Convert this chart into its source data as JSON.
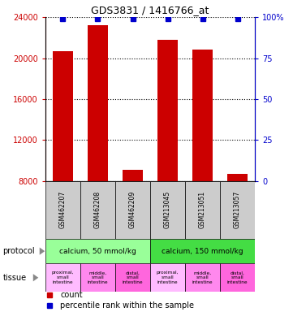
{
  "title": "GDS3831 / 1416766_at",
  "samples": [
    "GSM462207",
    "GSM462208",
    "GSM462209",
    "GSM213045",
    "GSM213051",
    "GSM213057"
  ],
  "counts": [
    20700,
    23200,
    9100,
    21800,
    20800,
    8700
  ],
  "percentile_values": [
    99,
    99,
    99,
    99,
    99,
    99
  ],
  "ylim_left": [
    8000,
    24000
  ],
  "ylim_right": [
    0,
    100
  ],
  "yticks_left": [
    8000,
    12000,
    16000,
    20000,
    24000
  ],
  "yticks_right": [
    0,
    25,
    50,
    75,
    100
  ],
  "bar_color": "#cc0000",
  "dot_color": "#0000cc",
  "bar_bottom": 8000,
  "protocol_row": [
    {
      "label": "calcium, 50 mmol/kg",
      "span": [
        0,
        3
      ],
      "color": "#99ff99"
    },
    {
      "label": "calcium, 150 mmol/kg",
      "span": [
        3,
        6
      ],
      "color": "#44dd44"
    }
  ],
  "tissue_colors": [
    "#ffbbff",
    "#ff88ee",
    "#ff66dd",
    "#ffbbff",
    "#ff88ee",
    "#ff66dd"
  ],
  "tissue_labels": [
    "proximal,\nsmall\nintestine",
    "middle,\nsmall\nintestine",
    "distal,\nsmall\nintestine",
    "proximal,\nsmall\nintestine",
    "middle,\nsmall\nintestine",
    "distal,\nsmall\nintestine"
  ],
  "legend_count_color": "#cc0000",
  "legend_percentile_color": "#0000cc",
  "left_axis_color": "#cc0000",
  "right_axis_color": "#0000cc",
  "sample_box_color": "#cccccc",
  "bar_width": 0.6
}
